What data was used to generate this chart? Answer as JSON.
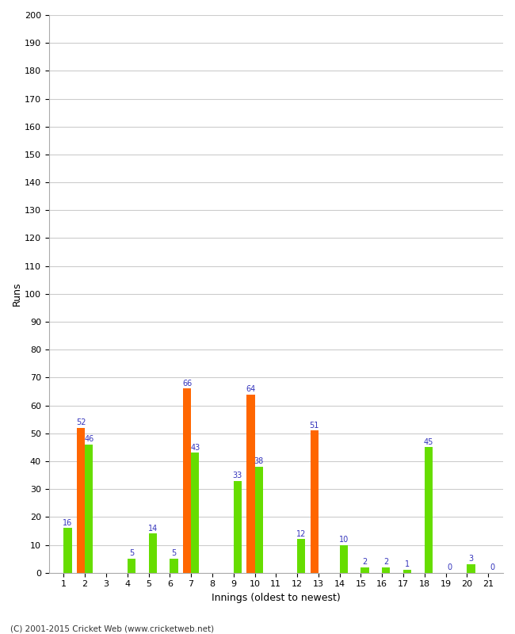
{
  "xlabel": "Innings (oldest to newest)",
  "ylabel": "Runs",
  "ylim": [
    0,
    200
  ],
  "yticks": [
    0,
    10,
    20,
    30,
    40,
    50,
    60,
    70,
    80,
    90,
    100,
    110,
    120,
    130,
    140,
    150,
    160,
    170,
    180,
    190,
    200
  ],
  "innings": [
    1,
    2,
    3,
    4,
    5,
    6,
    7,
    8,
    9,
    10,
    11,
    12,
    13,
    14,
    15,
    16,
    17,
    18,
    19,
    20,
    21
  ],
  "green_values": [
    16,
    46,
    0,
    5,
    14,
    5,
    43,
    0,
    33,
    38,
    0,
    12,
    0,
    10,
    2,
    2,
    1,
    45,
    0,
    3,
    0
  ],
  "orange_values": [
    0,
    52,
    0,
    0,
    0,
    0,
    66,
    0,
    0,
    64,
    0,
    0,
    51,
    0,
    0,
    0,
    0,
    0,
    0,
    0,
    0
  ],
  "green_color": "#66dd00",
  "orange_color": "#ff6600",
  "label_color": "#3333bb",
  "background_color": "#ffffff",
  "grid_color": "#cccccc",
  "bar_width": 0.38,
  "footer": "(C) 2001-2015 Cricket Web (www.cricketweb.net)",
  "footer_color": "#333333"
}
